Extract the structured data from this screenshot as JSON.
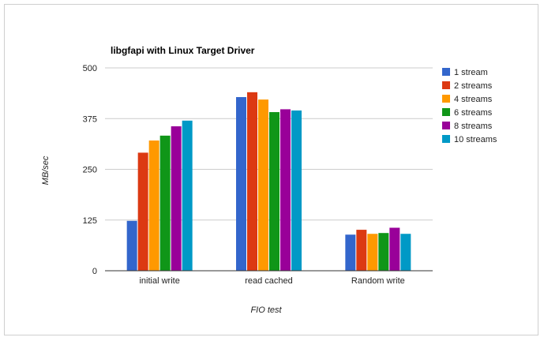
{
  "chart_data": {
    "type": "bar",
    "title": "libgfapi with Linux Target Driver",
    "xlabel": "FIO test",
    "ylabel": "MB/sec",
    "ylim": [
      0,
      500
    ],
    "yticks": [
      "0",
      "125",
      "250",
      "375",
      "500"
    ],
    "ytick_values": [
      0,
      125,
      250,
      375,
      500
    ],
    "categories": [
      "initial write",
      "read cached",
      "Random write"
    ],
    "series": [
      {
        "name": "1 stream",
        "color": "#3366cc",
        "values": [
          123,
          428,
          89
        ]
      },
      {
        "name": "2 streams",
        "color": "#dc3912",
        "values": [
          291,
          440,
          101
        ]
      },
      {
        "name": "4 streams",
        "color": "#ff9900",
        "values": [
          321,
          422,
          91
        ]
      },
      {
        "name": "6 streams",
        "color": "#109618",
        "values": [
          333,
          391,
          93
        ]
      },
      {
        "name": "8 streams",
        "color": "#990099",
        "values": [
          356,
          398,
          106
        ]
      },
      {
        "name": "10 streams",
        "color": "#0099c6",
        "values": [
          370,
          395,
          91
        ]
      }
    ],
    "grid": true,
    "legend_position": "right"
  }
}
